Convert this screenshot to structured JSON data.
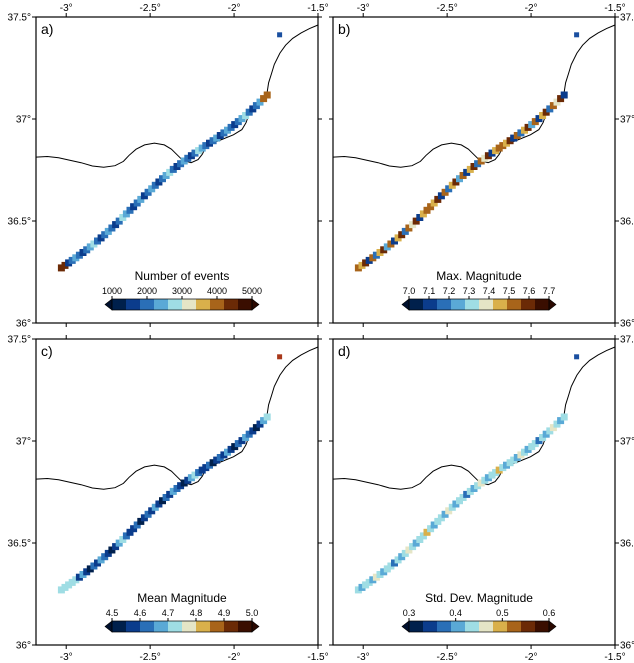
{
  "colors": {
    "palette": [
      "#00204c",
      "#0b3c8c",
      "#2a6fb7",
      "#5aa9d6",
      "#9fdde4",
      "#e5e5c6",
      "#d9b04b",
      "#a8641a",
      "#6b2a06",
      "#3a0e00"
    ]
  },
  "axes": {
    "lon_ticks": [
      "-3°",
      "-2.5°",
      "-2°",
      "-1.5°"
    ],
    "lat_ticks": [
      "37.5°",
      "37°",
      "36.5°",
      "36°"
    ]
  },
  "panels": [
    {
      "tag": "a)",
      "colorbar": {
        "title": "Number of events",
        "ticks": [
          "1000",
          "2000",
          "3000",
          "4000",
          "5000"
        ]
      },
      "far_cell_color": "#1a4fa0"
    },
    {
      "tag": "b)",
      "colorbar": {
        "title": "Max. Magnitude",
        "ticks": [
          "7.0",
          "7.1",
          "7.2",
          "7.3",
          "7.4",
          "7.5",
          "7.6",
          "7.7"
        ]
      },
      "far_cell_color": "#1a4fa0"
    },
    {
      "tag": "c)",
      "colorbar": {
        "title": "Mean Magnitude",
        "ticks": [
          "4.5",
          "4.6",
          "4.7",
          "4.8",
          "4.9",
          "5.0"
        ]
      },
      "far_cell_color": "#a8381a"
    },
    {
      "tag": "d)",
      "colorbar": {
        "title": "Std. Dev. Magnitude",
        "ticks": [
          "0.3",
          "0.4",
          "0.5",
          "0.6"
        ]
      },
      "far_cell_color": "#1a4fa0"
    }
  ]
}
